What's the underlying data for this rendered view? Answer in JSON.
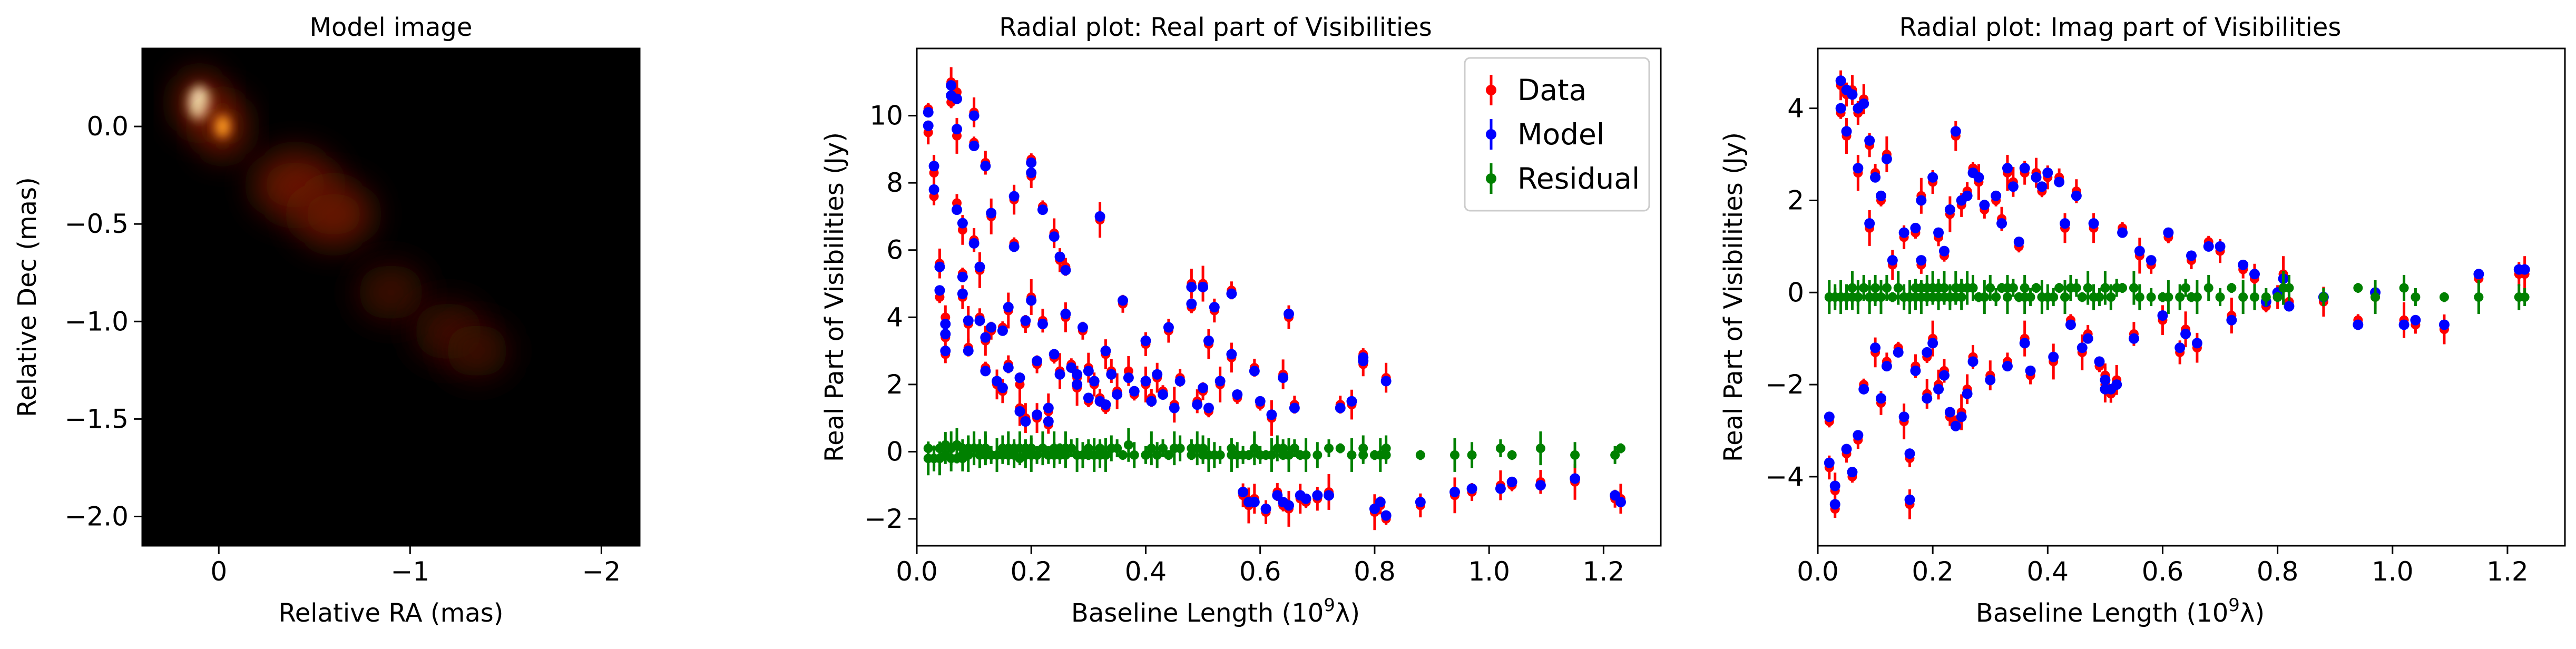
{
  "chart_data": [
    {
      "type": "heatmap",
      "title": "Model image",
      "xlabel": "Relative RA (mas)",
      "ylabel": "Relative Dec (mas)",
      "xlim": [
        0.4,
        -2.2
      ],
      "ylim": [
        -2.15,
        0.4
      ],
      "xticks": [
        0,
        -1,
        -2
      ],
      "xtick_labels": [
        "0",
        "−1",
        "−2"
      ],
      "yticks": [
        0.0,
        -0.5,
        -1.0,
        -1.5,
        -2.0
      ],
      "ytick_labels": [
        "0.0",
        "−0.5",
        "−1.0",
        "−1.5",
        "−2.0"
      ],
      "colormap": "afmhot",
      "background_color": "#000000",
      "components": [
        {
          "ra": 0.1,
          "dec": 0.12,
          "intensity": 1.0
        },
        {
          "ra": -0.02,
          "dec": 0.0,
          "intensity": 0.55
        },
        {
          "ra": -0.4,
          "dec": -0.3,
          "intensity": 0.32
        },
        {
          "ra": -0.6,
          "dec": -0.45,
          "intensity": 0.28
        },
        {
          "ra": -0.9,
          "dec": -0.85,
          "intensity": 0.18
        },
        {
          "ra": -1.2,
          "dec": -1.05,
          "intensity": 0.2
        },
        {
          "ra": -1.35,
          "dec": -1.15,
          "intensity": 0.15
        }
      ]
    },
    {
      "type": "scatter",
      "title": "Radial plot: Real part of Visibilities",
      "xlabel": "Baseline Length (10",
      "xlabel_sup": "9",
      "xlabel_tail": "λ)",
      "ylabel": "Real Part of Visibilities (Jy)",
      "xlim": [
        0.0,
        1.3
      ],
      "ylim": [
        -2.8,
        12.0
      ],
      "xticks": [
        0.0,
        0.2,
        0.4,
        0.6,
        0.8,
        1.0,
        1.2
      ],
      "xtick_labels": [
        "0.0",
        "0.2",
        "0.4",
        "0.6",
        "0.8",
        "1.0",
        "1.2"
      ],
      "yticks": [
        -2,
        0,
        2,
        4,
        6,
        8,
        10
      ],
      "ytick_labels": [
        "−2",
        "0",
        "2",
        "4",
        "6",
        "8",
        "10"
      ],
      "legend_position": "top-right",
      "series": [
        {
          "name": "Data",
          "color": "#ff0000"
        },
        {
          "name": "Model",
          "color": "#0000ff"
        },
        {
          "name": "Residual",
          "color": "#008000"
        }
      ],
      "points": [
        [
          0.02,
          10.2,
          10.1
        ],
        [
          0.02,
          9.5,
          9.7
        ],
        [
          0.03,
          8.3,
          8.5
        ],
        [
          0.03,
          7.6,
          7.8
        ],
        [
          0.04,
          5.6,
          5.5
        ],
        [
          0.04,
          4.6,
          4.8
        ],
        [
          0.05,
          4.0,
          3.8
        ],
        [
          0.05,
          3.4,
          3.5
        ],
        [
          0.05,
          2.9,
          3.0
        ],
        [
          0.06,
          11.0,
          10.9
        ],
        [
          0.06,
          10.4,
          10.6
        ],
        [
          0.07,
          10.7,
          10.5
        ],
        [
          0.07,
          9.4,
          9.6
        ],
        [
          0.07,
          7.4,
          7.2
        ],
        [
          0.08,
          6.6,
          6.8
        ],
        [
          0.08,
          5.3,
          5.2
        ],
        [
          0.08,
          4.6,
          4.7
        ],
        [
          0.09,
          3.8,
          3.9
        ],
        [
          0.09,
          3.1,
          3.0
        ],
        [
          0.1,
          10.1,
          10.0
        ],
        [
          0.1,
          9.2,
          9.1
        ],
        [
          0.1,
          6.3,
          6.2
        ],
        [
          0.11,
          5.4,
          5.5
        ],
        [
          0.11,
          4.0,
          3.9
        ],
        [
          0.12,
          3.3,
          3.4
        ],
        [
          0.12,
          2.5,
          2.4
        ],
        [
          0.12,
          8.6,
          8.5
        ],
        [
          0.13,
          7.0,
          7.1
        ],
        [
          0.13,
          3.6,
          3.7
        ],
        [
          0.14,
          2.0,
          2.1
        ],
        [
          0.15,
          3.7,
          3.6
        ],
        [
          0.15,
          1.8,
          1.9
        ],
        [
          0.16,
          4.2,
          4.3
        ],
        [
          0.16,
          2.6,
          2.5
        ],
        [
          0.17,
          7.5,
          7.6
        ],
        [
          0.17,
          6.2,
          6.1
        ],
        [
          0.18,
          2.0,
          2.2
        ],
        [
          0.18,
          1.3,
          1.2
        ],
        [
          0.19,
          3.8,
          3.9
        ],
        [
          0.19,
          1.0,
          0.9
        ],
        [
          0.2,
          8.7,
          8.6
        ],
        [
          0.2,
          8.2,
          8.3
        ],
        [
          0.2,
          4.6,
          4.5
        ],
        [
          0.21,
          2.6,
          2.7
        ],
        [
          0.21,
          1.0,
          1.1
        ],
        [
          0.22,
          7.3,
          7.2
        ],
        [
          0.22,
          3.9,
          3.8
        ],
        [
          0.23,
          1.2,
          1.3
        ],
        [
          0.23,
          0.8,
          0.9
        ],
        [
          0.24,
          6.5,
          6.4
        ],
        [
          0.24,
          2.8,
          2.9
        ],
        [
          0.25,
          5.7,
          5.8
        ],
        [
          0.25,
          2.4,
          2.3
        ],
        [
          0.26,
          5.5,
          5.4
        ],
        [
          0.26,
          4.0,
          4.1
        ],
        [
          0.27,
          2.6,
          2.5
        ],
        [
          0.28,
          2.2,
          2.3
        ],
        [
          0.28,
          1.9,
          2.0
        ],
        [
          0.29,
          3.6,
          3.7
        ],
        [
          0.3,
          2.5,
          2.4
        ],
        [
          0.3,
          1.5,
          1.6
        ],
        [
          0.31,
          2.0,
          2.1
        ],
        [
          0.32,
          6.9,
          7.0
        ],
        [
          0.32,
          1.6,
          1.5
        ],
        [
          0.33,
          2.9,
          3.0
        ],
        [
          0.33,
          1.3,
          1.4
        ],
        [
          0.34,
          2.4,
          2.3
        ],
        [
          0.35,
          1.8,
          1.7
        ],
        [
          0.36,
          4.4,
          4.5
        ],
        [
          0.37,
          2.4,
          2.2
        ],
        [
          0.38,
          1.7,
          1.8
        ],
        [
          0.4,
          3.2,
          3.3
        ],
        [
          0.4,
          2.0,
          2.1
        ],
        [
          0.41,
          1.6,
          1.5
        ],
        [
          0.42,
          2.2,
          2.3
        ],
        [
          0.43,
          1.8,
          1.7
        ],
        [
          0.44,
          3.6,
          3.7
        ],
        [
          0.45,
          1.4,
          1.3
        ],
        [
          0.46,
          2.2,
          2.1
        ],
        [
          0.48,
          5.0,
          4.9
        ],
        [
          0.48,
          4.3,
          4.4
        ],
        [
          0.49,
          1.5,
          1.4
        ],
        [
          0.5,
          5.0,
          4.9
        ],
        [
          0.5,
          1.8,
          1.9
        ],
        [
          0.51,
          3.2,
          3.3
        ],
        [
          0.51,
          1.2,
          1.3
        ],
        [
          0.52,
          4.2,
          4.3
        ],
        [
          0.53,
          2.0,
          2.1
        ],
        [
          0.55,
          4.8,
          4.7
        ],
        [
          0.55,
          2.8,
          2.9
        ],
        [
          0.56,
          1.6,
          1.7
        ],
        [
          0.57,
          -1.3,
          -1.2
        ],
        [
          0.58,
          -1.6,
          -1.5
        ],
        [
          0.59,
          2.5,
          2.4
        ],
        [
          0.59,
          -1.4,
          -1.5
        ],
        [
          0.6,
          1.4,
          1.5
        ],
        [
          0.61,
          -1.8,
          -1.7
        ],
        [
          0.62,
          1.0,
          1.1
        ],
        [
          0.63,
          -1.2,
          -1.3
        ],
        [
          0.64,
          2.3,
          2.2
        ],
        [
          0.64,
          -1.6,
          -1.5
        ],
        [
          0.65,
          4.0,
          4.1
        ],
        [
          0.65,
          -1.7,
          -1.6
        ],
        [
          0.66,
          1.4,
          1.3
        ],
        [
          0.67,
          -1.4,
          -1.3
        ],
        [
          0.68,
          -1.5,
          -1.4
        ],
        [
          0.7,
          -1.4,
          -1.3
        ],
        [
          0.72,
          -1.2,
          -1.3
        ],
        [
          0.74,
          1.4,
          1.3
        ],
        [
          0.76,
          1.4,
          1.5
        ],
        [
          0.78,
          2.9,
          2.8
        ],
        [
          0.78,
          2.6,
          2.7
        ],
        [
          0.8,
          -1.8,
          -1.7
        ],
        [
          0.81,
          -1.6,
          -1.5
        ],
        [
          0.82,
          2.2,
          2.1
        ],
        [
          0.82,
          -2.0,
          -1.9
        ],
        [
          0.88,
          -1.6,
          -1.5
        ],
        [
          0.94,
          -1.3,
          -1.2
        ],
        [
          0.97,
          -1.2,
          -1.1
        ],
        [
          1.02,
          -1.0,
          -1.1
        ],
        [
          1.04,
          -1.0,
          -0.9
        ],
        [
          1.09,
          -0.9,
          -1.0
        ],
        [
          1.15,
          -0.9,
          -0.8
        ],
        [
          1.22,
          -1.4,
          -1.3
        ],
        [
          1.23,
          -1.4,
          -1.5
        ]
      ]
    },
    {
      "type": "scatter",
      "title": "Radial plot: Imag part of Visibilities",
      "xlabel": "Baseline Length (10",
      "xlabel_sup": "9",
      "xlabel_tail": "λ)",
      "ylabel": "Real Part of Visibilities (Jy)",
      "xlim": [
        0.0,
        1.3
      ],
      "ylim": [
        -5.5,
        5.3
      ],
      "xticks": [
        0.0,
        0.2,
        0.4,
        0.6,
        0.8,
        1.0,
        1.2
      ],
      "xtick_labels": [
        "0.0",
        "0.2",
        "0.4",
        "0.6",
        "0.8",
        "1.0",
        "1.2"
      ],
      "yticks": [
        -4,
        -2,
        0,
        2,
        4
      ],
      "ytick_labels": [
        "−4",
        "−2",
        "0",
        "2",
        "4"
      ],
      "series": [
        {
          "name": "Data",
          "color": "#ff0000"
        },
        {
          "name": "Model",
          "color": "#0000ff"
        },
        {
          "name": "Residual",
          "color": "#008000"
        }
      ],
      "points": [
        [
          0.02,
          -2.8,
          -2.7
        ],
        [
          0.02,
          -3.8,
          -3.7
        ],
        [
          0.03,
          -4.3,
          -4.2
        ],
        [
          0.03,
          -4.7,
          -4.6
        ],
        [
          0.04,
          4.5,
          4.6
        ],
        [
          0.04,
          3.9,
          4.0
        ],
        [
          0.05,
          4.3,
          4.4
        ],
        [
          0.05,
          3.4,
          3.5
        ],
        [
          0.05,
          -3.5,
          -3.4
        ],
        [
          0.06,
          4.4,
          4.3
        ],
        [
          0.06,
          -4.0,
          -3.9
        ],
        [
          0.07,
          3.9,
          4.0
        ],
        [
          0.07,
          2.6,
          2.7
        ],
        [
          0.07,
          -3.2,
          -3.1
        ],
        [
          0.08,
          4.2,
          4.1
        ],
        [
          0.08,
          -2.0,
          -2.1
        ],
        [
          0.09,
          3.2,
          3.3
        ],
        [
          0.09,
          1.4,
          1.5
        ],
        [
          0.1,
          2.6,
          2.5
        ],
        [
          0.1,
          -1.3,
          -1.2
        ],
        [
          0.11,
          2.0,
          2.1
        ],
        [
          0.11,
          -2.4,
          -2.3
        ],
        [
          0.12,
          3.0,
          2.9
        ],
        [
          0.12,
          -1.5,
          -1.6
        ],
        [
          0.13,
          0.6,
          0.7
        ],
        [
          0.14,
          -1.2,
          -1.3
        ],
        [
          0.15,
          1.2,
          1.3
        ],
        [
          0.15,
          -2.8,
          -2.7
        ],
        [
          0.16,
          -3.6,
          -3.5
        ],
        [
          0.16,
          -4.6,
          -4.5
        ],
        [
          0.17,
          1.3,
          1.4
        ],
        [
          0.17,
          -1.6,
          -1.7
        ],
        [
          0.18,
          2.1,
          2.0
        ],
        [
          0.18,
          0.6,
          0.7
        ],
        [
          0.19,
          -2.2,
          -2.3
        ],
        [
          0.19,
          -1.4,
          -1.3
        ],
        [
          0.2,
          2.4,
          2.5
        ],
        [
          0.2,
          -1.0,
          -1.1
        ],
        [
          0.21,
          1.2,
          1.3
        ],
        [
          0.21,
          -2.0,
          -2.1
        ],
        [
          0.22,
          0.8,
          0.9
        ],
        [
          0.22,
          -1.7,
          -1.8
        ],
        [
          0.23,
          1.7,
          1.8
        ],
        [
          0.23,
          -2.7,
          -2.6
        ],
        [
          0.24,
          3.4,
          3.5
        ],
        [
          0.24,
          -2.8,
          -2.9
        ],
        [
          0.25,
          1.9,
          2.0
        ],
        [
          0.25,
          -2.6,
          -2.7
        ],
        [
          0.26,
          2.2,
          2.1
        ],
        [
          0.26,
          -2.1,
          -2.2
        ],
        [
          0.27,
          2.7,
          2.6
        ],
        [
          0.27,
          -1.4,
          -1.5
        ],
        [
          0.28,
          2.4,
          2.5
        ],
        [
          0.29,
          1.8,
          1.9
        ],
        [
          0.3,
          -1.8,
          -1.9
        ],
        [
          0.31,
          2.0,
          2.1
        ],
        [
          0.32,
          1.6,
          1.5
        ],
        [
          0.33,
          2.6,
          2.7
        ],
        [
          0.33,
          -1.5,
          -1.6
        ],
        [
          0.34,
          2.4,
          2.3
        ],
        [
          0.35,
          1.0,
          1.1
        ],
        [
          0.36,
          2.6,
          2.7
        ],
        [
          0.36,
          -1.0,
          -1.1
        ],
        [
          0.37,
          -1.8,
          -1.7
        ],
        [
          0.38,
          2.6,
          2.5
        ],
        [
          0.39,
          2.2,
          2.3
        ],
        [
          0.4,
          2.5,
          2.6
        ],
        [
          0.41,
          -1.5,
          -1.4
        ],
        [
          0.42,
          2.5,
          2.4
        ],
        [
          0.43,
          1.4,
          1.5
        ],
        [
          0.44,
          -0.6,
          -0.7
        ],
        [
          0.45,
          2.2,
          2.1
        ],
        [
          0.46,
          -1.3,
          -1.2
        ],
        [
          0.47,
          -0.9,
          -1.0
        ],
        [
          0.48,
          1.4,
          1.5
        ],
        [
          0.49,
          -1.6,
          -1.5
        ],
        [
          0.5,
          -1.8,
          -1.9
        ],
        [
          0.5,
          -2.0,
          -2.1
        ],
        [
          0.51,
          -2.2,
          -2.1
        ],
        [
          0.52,
          -1.9,
          -2.0
        ],
        [
          0.53,
          1.4,
          1.3
        ],
        [
          0.55,
          -0.9,
          -1.0
        ],
        [
          0.56,
          0.8,
          0.9
        ],
        [
          0.58,
          0.6,
          0.7
        ],
        [
          0.6,
          -0.6,
          -0.5
        ],
        [
          0.61,
          1.2,
          1.3
        ],
        [
          0.63,
          -1.3,
          -1.2
        ],
        [
          0.64,
          -0.8,
          -0.9
        ],
        [
          0.65,
          0.7,
          0.8
        ],
        [
          0.66,
          -1.2,
          -1.1
        ],
        [
          0.68,
          1.1,
          1.0
        ],
        [
          0.7,
          0.9,
          1.0
        ],
        [
          0.72,
          -0.5,
          -0.6
        ],
        [
          0.74,
          0.5,
          0.6
        ],
        [
          0.76,
          0.3,
          0.4
        ],
        [
          0.78,
          -0.3,
          -0.2
        ],
        [
          0.8,
          -0.1,
          0.0
        ],
        [
          0.81,
          0.4,
          0.3
        ],
        [
          0.82,
          -0.2,
          -0.3
        ],
        [
          0.88,
          -0.2,
          -0.1
        ],
        [
          0.94,
          -0.6,
          -0.7
        ],
        [
          0.97,
          -0.1,
          0.0
        ],
        [
          1.02,
          -0.6,
          -0.7
        ],
        [
          1.04,
          -0.7,
          -0.6
        ],
        [
          1.09,
          -0.8,
          -0.7
        ],
        [
          1.15,
          0.3,
          0.4
        ],
        [
          1.22,
          0.4,
          0.5
        ],
        [
          1.23,
          0.4,
          0.5
        ]
      ]
    }
  ]
}
